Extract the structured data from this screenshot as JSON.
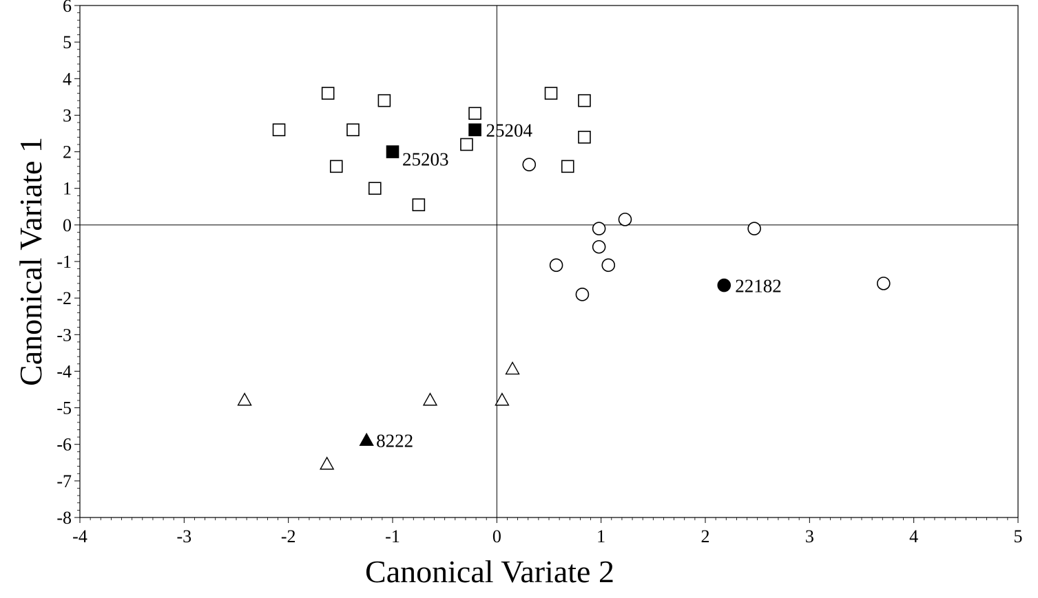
{
  "chart_data": {
    "type": "scatter",
    "xlabel": "Canonical Variate 2",
    "ylabel": "Canonical Variate 1",
    "xlim": [
      -4,
      5
    ],
    "ylim": [
      -8,
      6
    ],
    "xticks": [
      "-4",
      "-3",
      "-2",
      "-1",
      "0",
      "1",
      "2",
      "3",
      "4",
      "5"
    ],
    "yticks": [
      "6",
      "5",
      "4",
      "3",
      "2",
      "1",
      "0",
      "-1",
      "-2",
      "-3",
      "-4",
      "-5",
      "-6",
      "-7",
      "-8"
    ],
    "grid": false,
    "reference_lines": {
      "x": 0,
      "y": 0
    },
    "series": [
      {
        "marker": "square-open",
        "points": [
          {
            "x": -1.62,
            "y": 3.6
          },
          {
            "x": -1.08,
            "y": 3.4
          },
          {
            "x": -2.09,
            "y": 2.6
          },
          {
            "x": -1.38,
            "y": 2.6
          },
          {
            "x": -1.54,
            "y": 1.6
          },
          {
            "x": -1.17,
            "y": 1.0
          },
          {
            "x": -0.75,
            "y": 0.55
          },
          {
            "x": -0.29,
            "y": 2.2
          },
          {
            "x": -0.21,
            "y": 3.05
          },
          {
            "x": 0.52,
            "y": 3.6
          },
          {
            "x": 0.84,
            "y": 3.4
          },
          {
            "x": 0.84,
            "y": 2.4
          },
          {
            "x": 0.68,
            "y": 1.6
          }
        ]
      },
      {
        "marker": "square-filled",
        "points": [
          {
            "x": -1.0,
            "y": 2.0,
            "label": "25203"
          },
          {
            "x": -0.21,
            "y": 2.6,
            "label": "25204"
          }
        ]
      },
      {
        "marker": "circle-open",
        "points": [
          {
            "x": 0.31,
            "y": 1.65
          },
          {
            "x": 0.98,
            "y": -0.1
          },
          {
            "x": 1.23,
            "y": 0.15
          },
          {
            "x": 2.47,
            "y": -0.1
          },
          {
            "x": 0.98,
            "y": -0.6
          },
          {
            "x": 0.57,
            "y": -1.1
          },
          {
            "x": 1.07,
            "y": -1.1
          },
          {
            "x": 0.82,
            "y": -1.9
          },
          {
            "x": 3.71,
            "y": -1.6
          }
        ]
      },
      {
        "marker": "circle-filled",
        "points": [
          {
            "x": 2.18,
            "y": -1.65,
            "label": "22182"
          }
        ]
      },
      {
        "marker": "triangle-open",
        "points": [
          {
            "x": 0.15,
            "y": -3.95
          },
          {
            "x": -2.42,
            "y": -4.8
          },
          {
            "x": -0.64,
            "y": -4.8
          },
          {
            "x": 0.05,
            "y": -4.8
          },
          {
            "x": -1.63,
            "y": -6.55
          }
        ]
      },
      {
        "marker": "triangle-filled",
        "points": [
          {
            "x": -1.25,
            "y": -5.9,
            "label": "8222"
          }
        ]
      }
    ]
  }
}
